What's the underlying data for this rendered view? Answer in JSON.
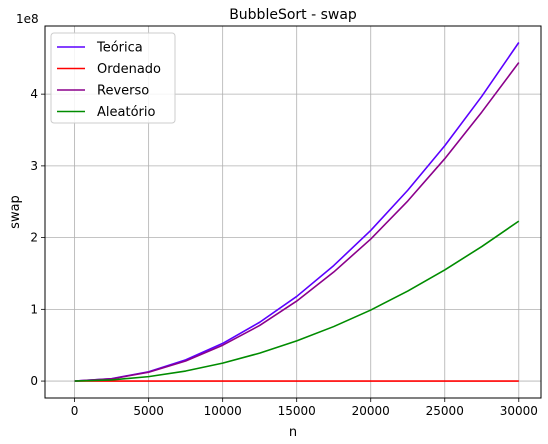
{
  "chart_data": {
    "type": "line",
    "title": "BubbleSort - swap",
    "xlabel": "n",
    "ylabel": "swap",
    "y_offset_label": "1e8",
    "xlim": [
      -2000,
      31500
    ],
    "ylim": [
      -0.236,
      4.95
    ],
    "x_ticks": [
      0,
      5000,
      10000,
      15000,
      20000,
      25000,
      30000
    ],
    "x_tick_labels": [
      "0",
      "5000",
      "10000",
      "15000",
      "20000",
      "25000",
      "30000"
    ],
    "y_ticks": [
      0,
      1,
      2,
      3,
      4
    ],
    "y_tick_labels": [
      "0",
      "1",
      "2",
      "3",
      "4"
    ],
    "grid": true,
    "legend_position": "top-left",
    "series": [
      {
        "name": "Teórica",
        "color": "#5b00ff",
        "x": [
          0,
          2500,
          5000,
          7500,
          10000,
          12500,
          15000,
          17500,
          20000,
          22500,
          25000,
          27500,
          30000
        ],
        "values": [
          0,
          0.033,
          0.13,
          0.295,
          0.525,
          0.82,
          1.18,
          1.61,
          2.1,
          2.66,
          3.28,
          3.97,
          4.72
        ]
      },
      {
        "name": "Ordenado",
        "color": "#ff0000",
        "x": [
          0,
          30000
        ],
        "values": [
          0,
          0
        ]
      },
      {
        "name": "Reverso",
        "color": "#8b008b",
        "x": [
          0,
          2500,
          5000,
          7500,
          10000,
          12500,
          15000,
          17500,
          20000,
          22500,
          25000,
          27500,
          30000
        ],
        "values": [
          0,
          0.031,
          0.124,
          0.28,
          0.5,
          0.775,
          1.115,
          1.52,
          1.98,
          2.51,
          3.1,
          3.75,
          4.44
        ]
      },
      {
        "name": "Aleatório",
        "color": "#008c00",
        "x": [
          0,
          2500,
          5000,
          7500,
          10000,
          12500,
          15000,
          17500,
          20000,
          22500,
          25000,
          27500,
          30000
        ],
        "values": [
          0,
          0.016,
          0.062,
          0.14,
          0.25,
          0.39,
          0.56,
          0.76,
          0.99,
          1.255,
          1.55,
          1.875,
          2.23
        ]
      }
    ]
  }
}
